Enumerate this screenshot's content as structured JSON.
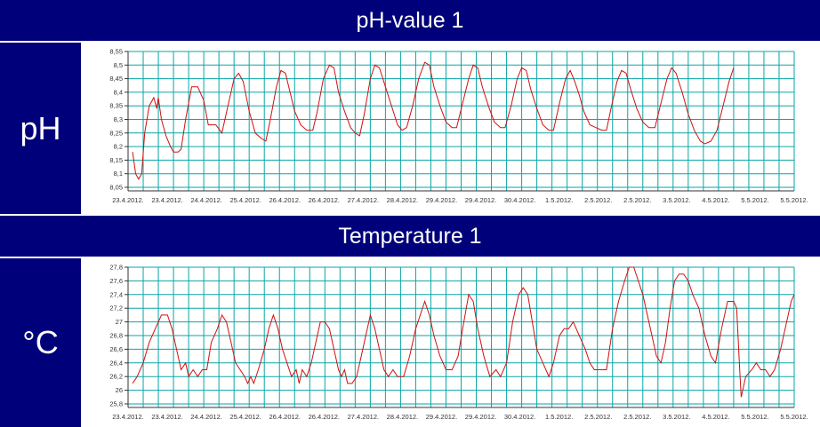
{
  "panels": [
    {
      "title": "pH-value 1",
      "unit": "pH"
    },
    {
      "title": "Temperature 1",
      "unit": "°C"
    }
  ],
  "colors": {
    "header_bg": "#00007a",
    "header_text": "#ffffff",
    "grid": "#0aa6a6",
    "line": "#d01010",
    "axis": "#333333"
  },
  "chart_data": [
    {
      "type": "line",
      "title": "pH-value 1",
      "ylabel": "pH",
      "ylim": [
        8.05,
        8.55
      ],
      "yticks": [
        "8,55",
        "8,5",
        "8,45",
        "8,4",
        "8,35",
        "8,3",
        "8,25",
        "8,2",
        "8,15",
        "8,1",
        "8,05"
      ],
      "xtick_labels": [
        "23.4.2012.",
        "23.4.2012.",
        "24.4.2012.",
        "25.4.2012.",
        "26.4.2012.",
        "26.4.2012.",
        "27.4.2012.",
        "28.4.2012.",
        "29.4.2012.",
        "29.4.2012.",
        "30.4.2012.",
        "1.5.2012.",
        "2.5.2012.",
        "2.5.2012.",
        "3.5.2012.",
        "4.5.2012.",
        "5.5.2012.",
        "5.5.2012."
      ],
      "grid": true,
      "series": [
        {
          "values": [
            [
              0.3,
              8.18
            ],
            [
              0.5,
              8.1
            ],
            [
              0.7,
              8.08
            ],
            [
              0.9,
              8.1
            ],
            [
              1.1,
              8.25
            ],
            [
              1.4,
              8.35
            ],
            [
              1.7,
              8.38
            ],
            [
              1.9,
              8.34
            ],
            [
              2.0,
              8.38
            ],
            [
              2.2,
              8.3
            ],
            [
              2.5,
              8.24
            ],
            [
              2.8,
              8.2
            ],
            [
              3.0,
              8.18
            ],
            [
              3.3,
              8.18
            ],
            [
              3.5,
              8.19
            ],
            [
              3.8,
              8.3
            ],
            [
              4.2,
              8.42
            ],
            [
              4.6,
              8.42
            ],
            [
              5.0,
              8.37
            ],
            [
              5.3,
              8.28
            ],
            [
              5.8,
              8.28
            ],
            [
              6.2,
              8.25
            ],
            [
              6.6,
              8.35
            ],
            [
              7.0,
              8.45
            ],
            [
              7.3,
              8.47
            ],
            [
              7.6,
              8.44
            ],
            [
              8.0,
              8.33
            ],
            [
              8.4,
              8.25
            ],
            [
              8.8,
              8.23
            ],
            [
              9.1,
              8.22
            ],
            [
              9.4,
              8.3
            ],
            [
              9.8,
              8.42
            ],
            [
              10.1,
              8.48
            ],
            [
              10.4,
              8.47
            ],
            [
              10.7,
              8.4
            ],
            [
              11.0,
              8.33
            ],
            [
              11.4,
              8.28
            ],
            [
              11.8,
              8.26
            ],
            [
              12.2,
              8.26
            ],
            [
              12.5,
              8.33
            ],
            [
              12.9,
              8.45
            ],
            [
              13.3,
              8.5
            ],
            [
              13.6,
              8.49
            ],
            [
              13.9,
              8.4
            ],
            [
              14.3,
              8.33
            ],
            [
              14.7,
              8.27
            ],
            [
              15.0,
              8.25
            ],
            [
              15.3,
              8.24
            ],
            [
              15.6,
              8.32
            ],
            [
              16.0,
              8.45
            ],
            [
              16.3,
              8.5
            ],
            [
              16.6,
              8.49
            ],
            [
              17.0,
              8.42
            ],
            [
              17.4,
              8.35
            ],
            [
              17.8,
              8.28
            ],
            [
              18.1,
              8.26
            ],
            [
              18.4,
              8.27
            ],
            [
              18.8,
              8.35
            ],
            [
              19.2,
              8.45
            ],
            [
              19.6,
              8.51
            ],
            [
              19.9,
              8.5
            ],
            [
              20.2,
              8.42
            ],
            [
              20.6,
              8.35
            ],
            [
              21.0,
              8.29
            ],
            [
              21.4,
              8.27
            ],
            [
              21.7,
              8.27
            ],
            [
              22.1,
              8.36
            ],
            [
              22.5,
              8.45
            ],
            [
              22.8,
              8.5
            ],
            [
              23.1,
              8.49
            ],
            [
              23.4,
              8.42
            ],
            [
              23.8,
              8.35
            ],
            [
              24.2,
              8.29
            ],
            [
              24.6,
              8.27
            ],
            [
              24.9,
              8.27
            ],
            [
              25.3,
              8.35
            ],
            [
              25.7,
              8.45
            ],
            [
              26.0,
              8.49
            ],
            [
              26.3,
              8.48
            ],
            [
              26.6,
              8.41
            ],
            [
              27.0,
              8.34
            ],
            [
              27.4,
              8.28
            ],
            [
              27.8,
              8.26
            ],
            [
              28.1,
              8.26
            ],
            [
              28.5,
              8.36
            ],
            [
              28.9,
              8.45
            ],
            [
              29.2,
              8.48
            ],
            [
              29.5,
              8.44
            ],
            [
              29.8,
              8.39
            ],
            [
              30.1,
              8.33
            ],
            [
              30.5,
              8.28
            ],
            [
              30.9,
              8.27
            ],
            [
              31.3,
              8.26
            ],
            [
              31.6,
              8.26
            ],
            [
              31.9,
              8.34
            ],
            [
              32.3,
              8.44
            ],
            [
              32.6,
              8.48
            ],
            [
              32.9,
              8.47
            ],
            [
              33.2,
              8.41
            ],
            [
              33.6,
              8.34
            ],
            [
              34.0,
              8.29
            ],
            [
              34.4,
              8.27
            ],
            [
              34.8,
              8.27
            ],
            [
              35.2,
              8.36
            ],
            [
              35.6,
              8.45
            ],
            [
              35.9,
              8.49
            ],
            [
              36.2,
              8.47
            ],
            [
              36.6,
              8.4
            ],
            [
              37.0,
              8.32
            ],
            [
              37.4,
              8.26
            ],
            [
              37.8,
              8.22
            ],
            [
              38.1,
              8.21
            ],
            [
              38.5,
              8.22
            ],
            [
              38.9,
              8.26
            ],
            [
              39.3,
              8.35
            ],
            [
              39.7,
              8.44
            ],
            [
              40.0,
              8.49
            ]
          ]
        }
      ]
    },
    {
      "type": "line",
      "title": "Temperature 1",
      "ylabel": "°C",
      "ylim": [
        25.8,
        27.8
      ],
      "yticks": [
        "27,8",
        "27,6",
        "27,4",
        "27,2",
        "27",
        "26,8",
        "26,6",
        "26,4",
        "26,2",
        "26",
        "25,8"
      ],
      "xtick_labels": [
        "23.4.2012.",
        "23.4.2012.",
        "24.4.2012.",
        "25.4.2012.",
        "26.4.2012.",
        "26.4.2012.",
        "27.4.2012.",
        "28.4.2012.",
        "29.4.2012.",
        "29.4.2012.",
        "30.4.2012.",
        "1.5.2012.",
        "2.5.2012.",
        "2.5.2012.",
        "3.5.2012.",
        "4.5.2012.",
        "5.5.2012.",
        "5.5.2012."
      ],
      "grid": true,
      "series": [
        {
          "values": [
            [
              0.3,
              26.1
            ],
            [
              0.6,
              26.2
            ],
            [
              1.0,
              26.4
            ],
            [
              1.4,
              26.7
            ],
            [
              1.8,
              26.9
            ],
            [
              2.2,
              27.1
            ],
            [
              2.6,
              27.1
            ],
            [
              2.9,
              26.9
            ],
            [
              3.2,
              26.6
            ],
            [
              3.5,
              26.3
            ],
            [
              3.8,
              26.4
            ],
            [
              4.0,
              26.2
            ],
            [
              4.3,
              26.3
            ],
            [
              4.6,
              26.2
            ],
            [
              4.9,
              26.3
            ],
            [
              5.2,
              26.3
            ],
            [
              5.5,
              26.7
            ],
            [
              5.9,
              26.9
            ],
            [
              6.2,
              27.1
            ],
            [
              6.5,
              27.0
            ],
            [
              6.8,
              26.7
            ],
            [
              7.1,
              26.4
            ],
            [
              7.4,
              26.3
            ],
            [
              7.7,
              26.2
            ],
            [
              7.9,
              26.1
            ],
            [
              8.1,
              26.2
            ],
            [
              8.3,
              26.1
            ],
            [
              8.6,
              26.3
            ],
            [
              9.0,
              26.6
            ],
            [
              9.3,
              26.9
            ],
            [
              9.6,
              27.1
            ],
            [
              9.9,
              26.9
            ],
            [
              10.2,
              26.6
            ],
            [
              10.5,
              26.4
            ],
            [
              10.8,
              26.2
            ],
            [
              11.1,
              26.3
            ],
            [
              11.3,
              26.1
            ],
            [
              11.5,
              26.3
            ],
            [
              11.8,
              26.2
            ],
            [
              12.1,
              26.4
            ],
            [
              12.4,
              26.7
            ],
            [
              12.7,
              27.0
            ],
            [
              13.0,
              27.0
            ],
            [
              13.3,
              26.9
            ],
            [
              13.6,
              26.6
            ],
            [
              13.9,
              26.3
            ],
            [
              14.1,
              26.2
            ],
            [
              14.3,
              26.3
            ],
            [
              14.5,
              26.1
            ],
            [
              14.8,
              26.1
            ],
            [
              15.1,
              26.2
            ],
            [
              15.4,
              26.5
            ],
            [
              15.7,
              26.8
            ],
            [
              16.0,
              27.1
            ],
            [
              16.3,
              26.9
            ],
            [
              16.6,
              26.6
            ],
            [
              16.9,
              26.3
            ],
            [
              17.2,
              26.2
            ],
            [
              17.5,
              26.3
            ],
            [
              17.8,
              26.2
            ],
            [
              18.2,
              26.2
            ],
            [
              18.6,
              26.5
            ],
            [
              19.0,
              26.9
            ],
            [
              19.3,
              27.1
            ],
            [
              19.6,
              27.3
            ],
            [
              19.9,
              27.1
            ],
            [
              20.2,
              26.8
            ],
            [
              20.6,
              26.5
            ],
            [
              21.0,
              26.3
            ],
            [
              21.4,
              26.3
            ],
            [
              21.8,
              26.5
            ],
            [
              22.1,
              26.9
            ],
            [
              22.5,
              27.4
            ],
            [
              22.8,
              27.3
            ],
            [
              23.1,
              26.9
            ],
            [
              23.5,
              26.5
            ],
            [
              23.9,
              26.2
            ],
            [
              24.3,
              26.3
            ],
            [
              24.6,
              26.2
            ],
            [
              25.0,
              26.4
            ],
            [
              25.4,
              27.0
            ],
            [
              25.8,
              27.4
            ],
            [
              26.1,
              27.5
            ],
            [
              26.4,
              27.4
            ],
            [
              26.7,
              27.0
            ],
            [
              27.0,
              26.6
            ],
            [
              27.4,
              26.4
            ],
            [
              27.8,
              26.2
            ],
            [
              28.1,
              26.4
            ],
            [
              28.5,
              26.8
            ],
            [
              28.8,
              26.9
            ],
            [
              29.1,
              26.9
            ],
            [
              29.4,
              27.0
            ],
            [
              29.8,
              26.8
            ],
            [
              30.2,
              26.6
            ],
            [
              30.5,
              26.4
            ],
            [
              30.8,
              26.3
            ],
            [
              31.2,
              26.3
            ],
            [
              31.6,
              26.3
            ],
            [
              32.0,
              26.9
            ],
            [
              32.4,
              27.3
            ],
            [
              32.8,
              27.6
            ],
            [
              33.1,
              27.8
            ],
            [
              33.4,
              27.8
            ],
            [
              33.7,
              27.6
            ],
            [
              34.0,
              27.4
            ],
            [
              34.3,
              27.1
            ],
            [
              34.6,
              26.8
            ],
            [
              34.9,
              26.5
            ],
            [
              35.2,
              26.4
            ],
            [
              35.5,
              26.7
            ],
            [
              35.8,
              27.2
            ],
            [
              36.1,
              27.6
            ],
            [
              36.4,
              27.7
            ],
            [
              36.7,
              27.7
            ],
            [
              37.0,
              27.6
            ],
            [
              37.3,
              27.4
            ],
            [
              37.7,
              27.2
            ],
            [
              38.1,
              26.8
            ],
            [
              38.5,
              26.5
            ],
            [
              38.8,
              26.4
            ],
            [
              39.2,
              26.9
            ],
            [
              39.6,
              27.3
            ],
            [
              40.0,
              27.3
            ],
            [
              40.2,
              27.2
            ],
            [
              40.4,
              26.3
            ],
            [
              40.5,
              25.9
            ],
            [
              40.8,
              26.2
            ],
            [
              41.2,
              26.3
            ],
            [
              41.5,
              26.4
            ],
            [
              41.8,
              26.3
            ],
            [
              42.1,
              26.3
            ],
            [
              42.4,
              26.2
            ],
            [
              42.7,
              26.3
            ],
            [
              43.1,
              26.6
            ],
            [
              43.5,
              27.0
            ],
            [
              43.8,
              27.3
            ],
            [
              44.0,
              27.4
            ]
          ]
        }
      ]
    }
  ]
}
